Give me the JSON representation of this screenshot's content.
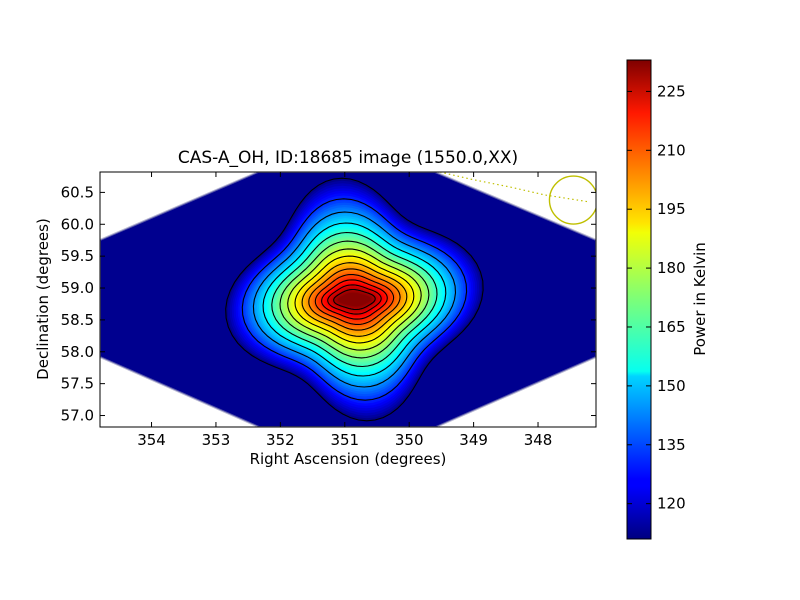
{
  "chart_data": {
    "type": "heatmap",
    "title": "CAS-A_OH, ID:18685 image (1550.0,XX)",
    "xlabel": "Right Ascension (degrees)",
    "ylabel": "Declination (degrees)",
    "xlim": [
      354.8,
      347.1
    ],
    "ylim": [
      56.82,
      60.82
    ],
    "x_ticks": [
      "354",
      "353",
      "352",
      "351",
      "350",
      "349",
      "348"
    ],
    "x_tick_values": [
      354,
      353,
      352,
      351,
      350,
      349,
      348
    ],
    "y_ticks": [
      "57.0",
      "57.5",
      "58.0",
      "58.5",
      "59.0",
      "59.5",
      "60.0",
      "60.5"
    ],
    "y_tick_values": [
      57.0,
      57.5,
      58.0,
      58.5,
      59.0,
      59.5,
      60.0,
      60.5
    ],
    "colorbar": {
      "label": "Power in Kelvin",
      "range": [
        111,
        233
      ],
      "ticks": [
        "120",
        "135",
        "150",
        "165",
        "180",
        "195",
        "210",
        "225"
      ],
      "tick_values": [
        120,
        135,
        150,
        165,
        180,
        195,
        210,
        225
      ],
      "colormap": "jet"
    },
    "source_peak": {
      "ra": 350.85,
      "dec": 58.82,
      "power": 232
    },
    "background_level": 112,
    "contour_count": 14,
    "beam_marker": {
      "ra": 347.45,
      "dec": 60.38,
      "color": "#bfbf00"
    },
    "grid": false,
    "colors": {
      "background": "#00008f",
      "contour": "#000000",
      "marker": "#bfbf00"
    }
  }
}
